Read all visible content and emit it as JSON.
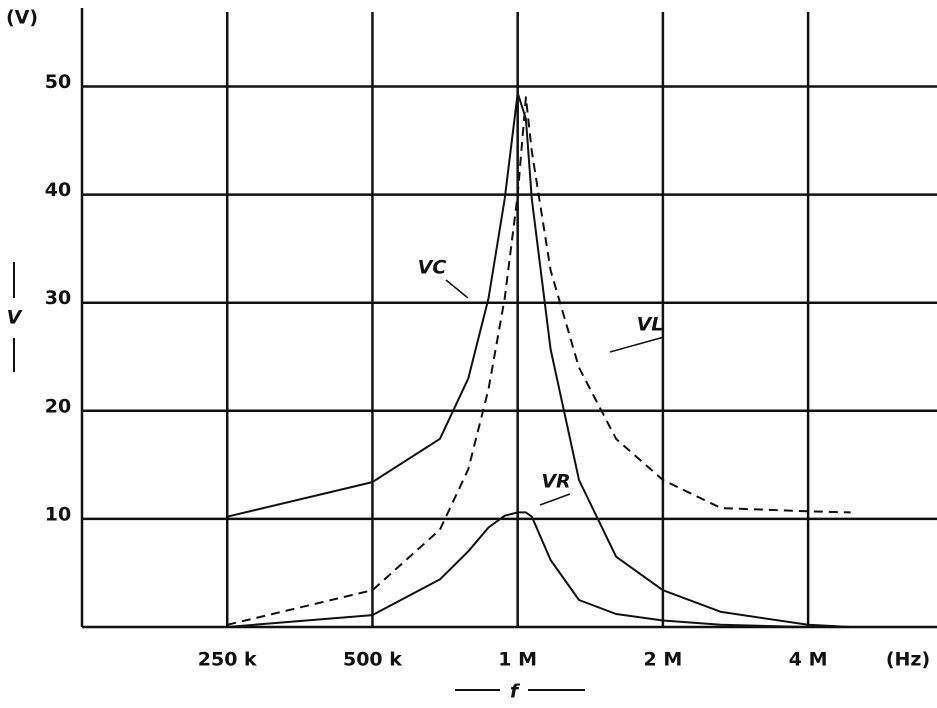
{
  "chart_data": {
    "type": "line",
    "x_label": "f",
    "x_unit": "(Hz)",
    "y_label": "V",
    "y_unit": "(V)",
    "x": [
      250000,
      500000,
      690000,
      790000,
      870000,
      940000,
      1000000,
      1040000,
      1070000,
      1170000,
      1340000,
      1600000,
      2000000,
      2640000,
      4000000,
      4900000
    ],
    "series": [
      {
        "name": "VC",
        "color": "#111111",
        "dash": false,
        "values": [
          10.2,
          13.4,
          17.4,
          23,
          30.4,
          39.6,
          49.4,
          47,
          39.6,
          25.7,
          13.6,
          6.5,
          3.4,
          1.4,
          0.2,
          0
        ]
      },
      {
        "name": "VL",
        "color": "#111111",
        "dash": true,
        "values": [
          0.2,
          3.4,
          9,
          14.6,
          22,
          30.4,
          40,
          49,
          44,
          33,
          24,
          17.4,
          13.6,
          11,
          10.7,
          10.6
        ]
      },
      {
        "name": "VR",
        "color": "#111111",
        "dash": false,
        "values": [
          0,
          1.1,
          4.4,
          7,
          9.2,
          10.3,
          10.6,
          10.6,
          10.2,
          6.2,
          2.5,
          1.2,
          0.6,
          0.2,
          0,
          0
        ]
      }
    ],
    "xscale": "log",
    "xlim": [
      125000,
      7400000
    ],
    "xticks": [
      {
        "value": 250000,
        "label": "250 k"
      },
      {
        "value": 500000,
        "label": "500 k"
      },
      {
        "value": 1000000,
        "label": "1 M"
      },
      {
        "value": 2000000,
        "label": "2 M"
      },
      {
        "value": 4000000,
        "label": "4 M"
      }
    ],
    "ylim": [
      0,
      58
    ],
    "yticks": [
      10,
      20,
      30,
      40,
      50
    ],
    "grid": true
  }
}
